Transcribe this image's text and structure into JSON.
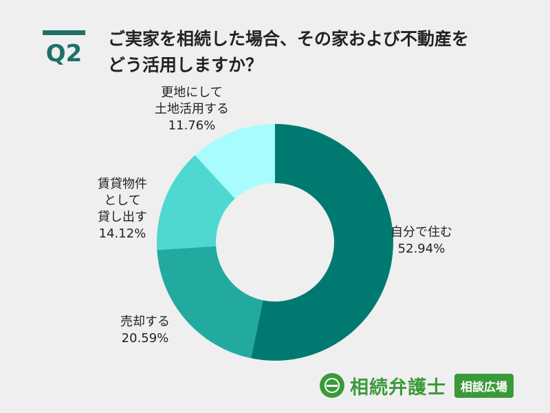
{
  "header": {
    "q_label": "Q2",
    "title_line1": "ご実家を相続した場合、その家および不動産を",
    "title_line2": "どう活用しますか？"
  },
  "chart_data": {
    "type": "pie",
    "title": "ご実家を相続した場合、その家および不動産をどう活用しますか？",
    "legend": "none",
    "slices": [
      {
        "label_lines": [
          "自分で住む"
        ],
        "value": 52.94,
        "value_text": "52.94%",
        "color": "#007a71"
      },
      {
        "label_lines": [
          "売却する"
        ],
        "value": 20.59,
        "value_text": "20.59%",
        "color": "#22aaa0"
      },
      {
        "label_lines": [
          "賃貸物件",
          "として",
          "貸し出す"
        ],
        "value": 14.12,
        "value_text": "14.12%",
        "color": "#4fd8d2"
      },
      {
        "label_lines": [
          "更地にして",
          "土地活用する"
        ],
        "value": 11.76,
        "value_text": "11.76%",
        "color": "#a8fcfc"
      }
    ]
  },
  "footer": {
    "brand_text": "相続弁護士",
    "badge_text": "相談広場",
    "brand_color": "#3a9a3a"
  }
}
